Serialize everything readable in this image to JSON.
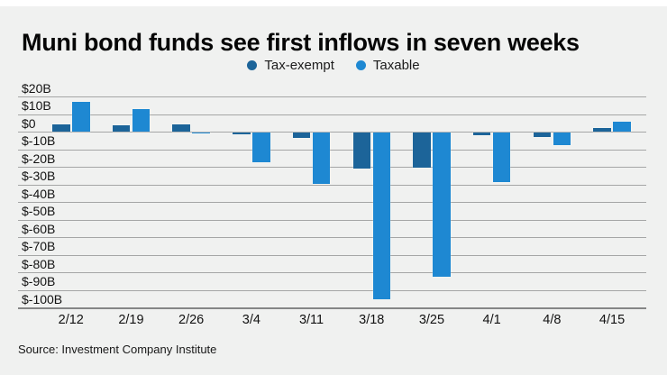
{
  "title": "Muni bond funds see first inflows in seven weeks",
  "source": "Source: Investment Company Institute",
  "colors": {
    "background": "#f0f1f0",
    "top_strip": "#ffffff",
    "gridline": "#a5a6a6",
    "axis_text": "#121212",
    "tax_exempt": "#1c6499",
    "taxable": "#1e88d2"
  },
  "chart_data": {
    "type": "bar",
    "title": "Muni bond funds see first inflows in seven weeks",
    "unit": "billions of dollars (weekly fund flows)",
    "categories": [
      "2/12",
      "2/19",
      "2/26",
      "3/4",
      "3/11",
      "3/18",
      "3/25",
      "4/1",
      "4/8",
      "4/15"
    ],
    "series": [
      {
        "name": "Tax-exempt",
        "color": "#1c6499",
        "values": [
          4,
          3.5,
          4,
          -1,
          -3,
          -20.5,
          -20,
          -1.5,
          -2.5,
          2
        ]
      },
      {
        "name": "Taxable",
        "color": "#1e88d2",
        "values": [
          17,
          13,
          -0.5,
          -17,
          -29,
          -95,
          -82,
          -28,
          -7,
          5.5
        ]
      }
    ],
    "xlabel": "",
    "ylabel": "",
    "ylim": [
      -100,
      20
    ],
    "ytick_step": 10,
    "ytick_labels": [
      "$20B",
      "$10B",
      "$0",
      "$-10B",
      "$-20B",
      "$-30B",
      "$-40B",
      "$-50B",
      "$-60B",
      "$-70B",
      "$-80B",
      "$-90B",
      "$-100B"
    ],
    "grid": true,
    "legend_position": "top-center"
  }
}
